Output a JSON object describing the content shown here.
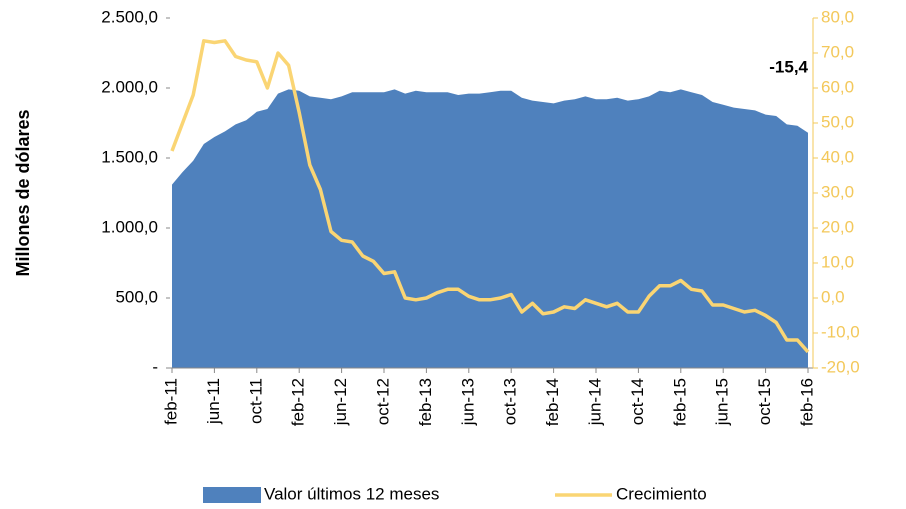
{
  "chart_data": {
    "type": "area_line",
    "y_axis_label": "Millones de dólares",
    "annotation": "-15,4",
    "categories": [
      "feb-11",
      null,
      null,
      null,
      "jun-11",
      null,
      null,
      null,
      "oct-11",
      null,
      null,
      null,
      "feb-12",
      null,
      null,
      null,
      "jun-12",
      null,
      null,
      null,
      "oct-12",
      null,
      null,
      null,
      "feb-13",
      null,
      null,
      null,
      "jun-13",
      null,
      null,
      null,
      "oct-13",
      null,
      null,
      null,
      "feb-14",
      null,
      null,
      null,
      "jun-14",
      null,
      null,
      null,
      "oct-14",
      null,
      null,
      null,
      "feb-15",
      null,
      null,
      null,
      "jun-15",
      null,
      null,
      null,
      "oct-15",
      null,
      null,
      null,
      "feb-16"
    ],
    "series": [
      {
        "name": "Valor últimos 12 meses",
        "color": "#4f81bd",
        "axis": "y",
        "values": [
          1310,
          1400,
          1480,
          1600,
          1650,
          1690,
          1740,
          1770,
          1830,
          1850,
          1960,
          1990,
          1980,
          1940,
          1930,
          1920,
          1940,
          1970,
          1970,
          1970,
          1970,
          1990,
          1960,
          1980,
          1970,
          1970,
          1970,
          1950,
          1960,
          1960,
          1970,
          1980,
          1980,
          1930,
          1910,
          1900,
          1890,
          1910,
          1920,
          1940,
          1920,
          1920,
          1930,
          1910,
          1920,
          1940,
          1980,
          1970,
          1990,
          1970,
          1950,
          1900,
          1880,
          1860,
          1850,
          1840,
          1810,
          1800,
          1740,
          1730,
          1680
        ]
      },
      {
        "name": "Crecimiento",
        "color": "#fad574",
        "axis": "y2",
        "values": [
          42,
          50,
          58,
          73.5,
          73,
          73.5,
          69,
          68,
          67.5,
          60,
          70,
          66.5,
          53,
          38,
          31,
          19,
          16.5,
          16,
          12,
          10.5,
          7,
          7.5,
          0,
          -0.5,
          0,
          1.5,
          2.5,
          2.5,
          0.5,
          -0.5,
          -0.5,
          0,
          1,
          -4,
          -1.5,
          -4.5,
          -4,
          -2.5,
          -3,
          -0.5,
          -1.5,
          -2.5,
          -1.5,
          -4,
          -4,
          0.5,
          3.5,
          3.5,
          5,
          2.5,
          2,
          -2,
          -2,
          -3,
          -4,
          -3.5,
          -5,
          -7,
          -12,
          -12,
          -15.4
        ]
      }
    ],
    "ylim": [
      0,
      2500
    ],
    "yticks": [
      {
        "value": 0,
        "label": "-"
      },
      {
        "value": 500,
        "label": "500,0"
      },
      {
        "value": 1000,
        "label": "1.000,0"
      },
      {
        "value": 1500,
        "label": "1.500,0"
      },
      {
        "value": 2000,
        "label": "2.000,0"
      },
      {
        "value": 2500,
        "label": "2.500,0"
      }
    ],
    "y2lim": [
      -20,
      80
    ],
    "y2ticks": [
      {
        "value": -20,
        "label": "-20,0"
      },
      {
        "value": -10,
        "label": "-10,0"
      },
      {
        "value": 0,
        "label": "0,0"
      },
      {
        "value": 10,
        "label": "10,0"
      },
      {
        "value": 20,
        "label": "20,0"
      },
      {
        "value": 30,
        "label": "30,0"
      },
      {
        "value": 40,
        "label": "40,0"
      },
      {
        "value": 50,
        "label": "50,0"
      },
      {
        "value": 60,
        "label": "60,0"
      },
      {
        "value": 70,
        "label": "70,0"
      },
      {
        "value": 80,
        "label": "80,0"
      }
    ],
    "legend": "bottom"
  }
}
